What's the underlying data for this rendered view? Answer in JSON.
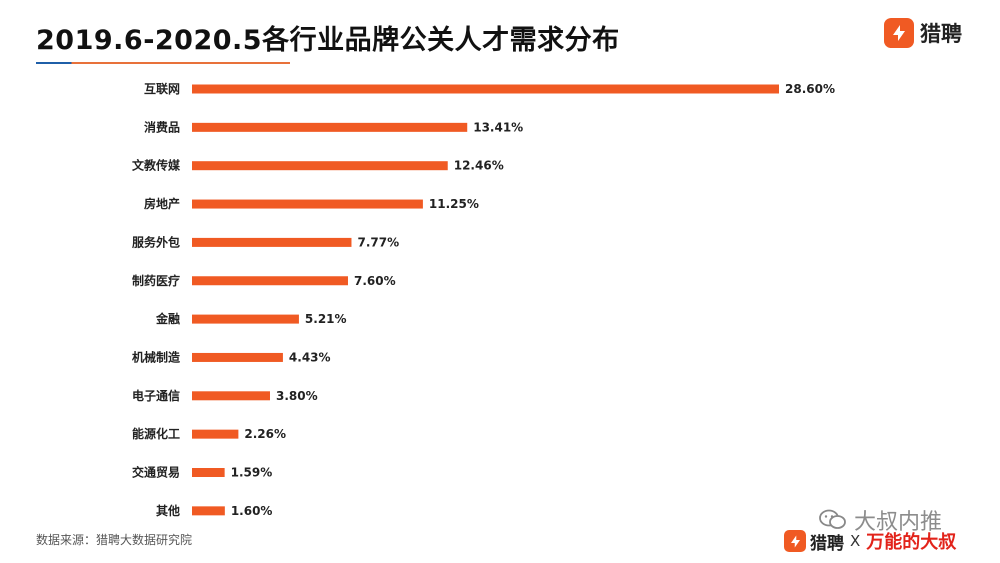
{
  "header": {
    "title": "2019.6-2020.5各行业品牌公关人才需求分布",
    "brand_name": "猎聘"
  },
  "chart_data": {
    "type": "bar",
    "orientation": "horizontal",
    "title": "2019.6-2020.5各行业品牌公关人才需求分布",
    "categories": [
      "互联网",
      "消费品",
      "文教传媒",
      "房地产",
      "服务外包",
      "制药医疗",
      "金融",
      "机械制造",
      "电子通信",
      "能源化工",
      "交通贸易",
      "其他"
    ],
    "values": [
      28.6,
      13.41,
      12.46,
      11.25,
      7.77,
      7.6,
      5.21,
      4.43,
      3.8,
      2.26,
      1.59,
      1.6
    ],
    "value_labels": [
      "28.60%",
      "13.41%",
      "12.46%",
      "11.25%",
      "7.77%",
      "7.60%",
      "5.21%",
      "4.43%",
      "3.80%",
      "2.26%",
      "1.59%",
      "1.60%"
    ],
    "xlabel": "",
    "ylabel": "",
    "xlim": [
      0,
      28.6
    ],
    "grid": false,
    "bar_color": "#f05a23"
  },
  "footer": {
    "source": "数据来源：猎聘大数据研究院",
    "watermark": "大叔内推",
    "brand_name": "猎聘",
    "separator": "X",
    "partner": "万能的大叔"
  },
  "colors": {
    "accent": "#f05a23",
    "title_rule_left": "#1f5fa8",
    "title_rule_right": "#e8713a",
    "partner": "#e2231a"
  }
}
